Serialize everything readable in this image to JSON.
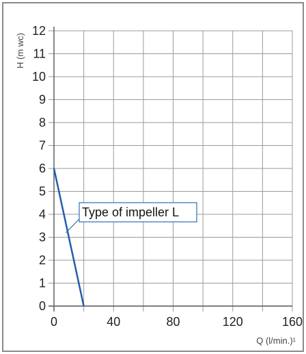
{
  "colors": {
    "grid": "#9a9a9a",
    "axis": "#555555",
    "series": "#1f5fa8",
    "callout_border": "#2e6db5",
    "frame": "#8a8a8a"
  },
  "chart_data": {
    "type": "line",
    "title": "",
    "xlabel": "Q (l/min.)¹",
    "ylabel": "H (m wc)",
    "xlim": [
      0,
      160
    ],
    "ylim": [
      0,
      12
    ],
    "x_ticks": [
      0,
      40,
      80,
      120,
      160
    ],
    "x_tick_labels": [
      "0",
      "40",
      "80",
      "120",
      "160"
    ],
    "y_ticks": [
      0,
      1,
      2,
      3,
      4,
      5,
      6,
      7,
      8,
      9,
      10,
      11,
      12
    ],
    "y_tick_labels": [
      "0",
      "1",
      "2",
      "3",
      "4",
      "5",
      "6",
      "7",
      "8",
      "9",
      "10",
      "11",
      "12"
    ],
    "grid": true,
    "legend": "none",
    "series": [
      {
        "x": [
          0,
          20
        ],
        "y": [
          6,
          0
        ],
        "color": "#1f5fa8"
      }
    ],
    "annotations": [
      {
        "text": "Type of impeller L",
        "x": 8,
        "y": 3.2
      }
    ]
  }
}
